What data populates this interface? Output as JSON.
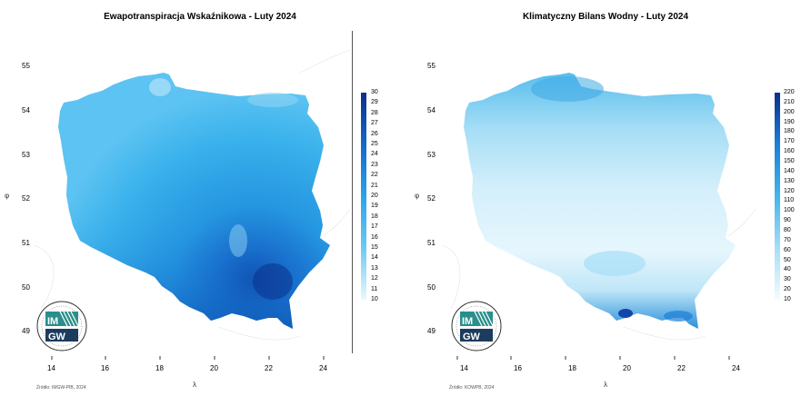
{
  "left": {
    "title": "Ewapotranspiracja Wskaźnikowa - Luty 2024",
    "y_ticks": [
      "55",
      "54",
      "53",
      "52",
      "51",
      "50",
      "49"
    ],
    "x_ticks": [
      "14",
      "16",
      "18",
      "20",
      "22",
      "24"
    ],
    "x_axis_symbol": "λ",
    "y_axis_symbol": "φ",
    "source": "Źródło: IMGW-PIB, 2024",
    "legend_labels": [
      "30",
      "29",
      "28",
      "27",
      "26",
      "25",
      "24",
      "23",
      "22",
      "21",
      "20",
      "19",
      "18",
      "17",
      "16",
      "15",
      "14",
      "13",
      "12",
      "11",
      "10"
    ],
    "colors": {
      "low": "#cfeefb",
      "mid": "#3ab2ec",
      "high": "#0b2f8a"
    }
  },
  "right": {
    "title": "Klimatyczny Bilans Wodny - Luty 2024",
    "y_ticks": [
      "55",
      "54",
      "53",
      "52",
      "51",
      "50",
      "49"
    ],
    "x_ticks": [
      "14",
      "16",
      "18",
      "20",
      "22",
      "24"
    ],
    "x_axis_symbol": "λ",
    "y_axis_symbol": "φ",
    "source": "Źródło: KOWPB, 2024",
    "legend_labels": [
      "220",
      "210",
      "200",
      "190",
      "180",
      "170",
      "160",
      "150",
      "140",
      "130",
      "120",
      "110",
      "100",
      "90",
      "80",
      "70",
      "60",
      "50",
      "40",
      "30",
      "20",
      "10"
    ],
    "colors": {
      "low": "#f2fbfe",
      "mid": "#8fd4f3",
      "high": "#0b2f8a"
    }
  },
  "logo": {
    "text_top": "IM",
    "text_bottom": "GW"
  }
}
